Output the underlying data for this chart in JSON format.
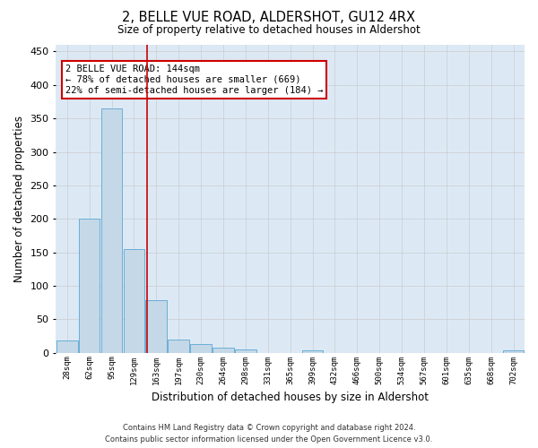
{
  "title": "2, BELLE VUE ROAD, ALDERSHOT, GU12 4RX",
  "subtitle": "Size of property relative to detached houses in Aldershot",
  "xlabel": "Distribution of detached houses by size in Aldershot",
  "ylabel": "Number of detached properties",
  "footer_line1": "Contains HM Land Registry data © Crown copyright and database right 2024.",
  "footer_line2": "Contains public sector information licensed under the Open Government Licence v3.0.",
  "categories": [
    "28sqm",
    "62sqm",
    "95sqm",
    "129sqm",
    "163sqm",
    "197sqm",
    "230sqm",
    "264sqm",
    "298sqm",
    "331sqm",
    "365sqm",
    "399sqm",
    "432sqm",
    "466sqm",
    "500sqm",
    "534sqm",
    "567sqm",
    "601sqm",
    "635sqm",
    "668sqm",
    "702sqm"
  ],
  "values": [
    18,
    200,
    365,
    155,
    78,
    20,
    13,
    7,
    5,
    0,
    0,
    4,
    0,
    0,
    0,
    0,
    0,
    0,
    0,
    0,
    3
  ],
  "bar_color": "#c5d8e8",
  "bar_edge_color": "#6aaed6",
  "grid_color": "#cccccc",
  "background_color": "#dce9f5",
  "annotation_line1": "2 BELLE VUE ROAD: 144sqm",
  "annotation_line2": "← 78% of detached houses are smaller (669)",
  "annotation_line3": "22% of semi-detached houses are larger (184) →",
  "red_line_x": 3.57,
  "annotation_box_color": "#ffffff",
  "annotation_border_color": "#cc0000",
  "ylim": [
    0,
    460
  ],
  "yticks": [
    0,
    50,
    100,
    150,
    200,
    250,
    300,
    350,
    400,
    450
  ]
}
